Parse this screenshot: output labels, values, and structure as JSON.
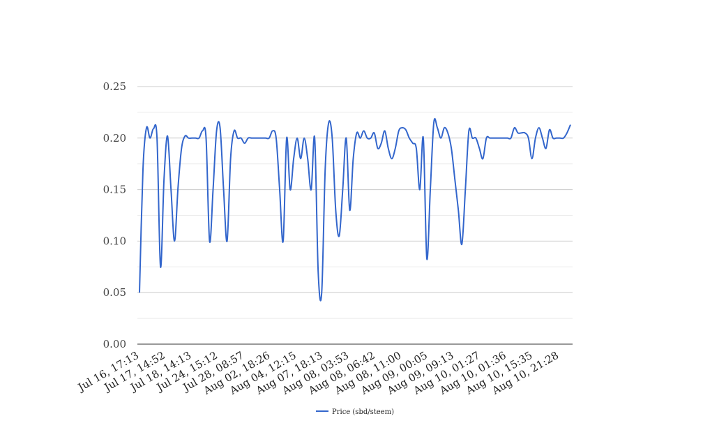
{
  "chart_data": {
    "type": "line",
    "xlabel": "",
    "ylabel": "",
    "ylim": [
      0,
      0.25
    ],
    "yticks": [
      "0.00",
      "0.05",
      "0.10",
      "0.15",
      "0.20",
      "0.25"
    ],
    "grid": true,
    "legend_position": "bottom",
    "x_tick_labels": [
      "Jul 16, 17:13",
      "Jul 17, 14:52",
      "Jul 18, 14:13",
      "Jul 24, 15:12",
      "Jul 28, 08:57",
      "Aug 02, 18:26",
      "Aug 04, 12:15",
      "Aug 07, 18:13",
      "Aug 08, 03:53",
      "Aug 08, 06:42",
      "Aug 08, 11:00",
      "Aug 09, 00:05",
      "Aug 09, 09:13",
      "Aug 10, 01:27",
      "Aug 10, 01:36",
      "Aug 10, 15:35",
      "Aug 10, 21:28"
    ],
    "series": [
      {
        "name": "Price (sbd/steem)",
        "color": "#3366cc",
        "values": [
          0.05,
          0.17,
          0.21,
          0.2,
          0.209,
          0.2,
          0.075,
          0.16,
          0.202,
          0.15,
          0.1,
          0.152,
          0.19,
          0.202,
          0.2,
          0.2,
          0.2,
          0.2,
          0.207,
          0.2,
          0.1,
          0.15,
          0.207,
          0.21,
          0.15,
          0.1,
          0.18,
          0.207,
          0.2,
          0.2,
          0.195,
          0.2,
          0.2,
          0.2,
          0.2,
          0.2,
          0.2,
          0.2,
          0.207,
          0.2,
          0.15,
          0.1,
          0.2,
          0.15,
          0.18,
          0.2,
          0.18,
          0.2,
          0.18,
          0.15,
          0.2,
          0.07,
          0.05,
          0.17,
          0.215,
          0.2,
          0.13,
          0.105,
          0.15,
          0.2,
          0.13,
          0.18,
          0.205,
          0.2,
          0.207,
          0.2,
          0.2,
          0.205,
          0.19,
          0.195,
          0.207,
          0.19,
          0.18,
          0.19,
          0.207,
          0.21,
          0.208,
          0.2,
          0.195,
          0.19,
          0.15,
          0.2,
          0.083,
          0.15,
          0.215,
          0.21,
          0.2,
          0.21,
          0.205,
          0.19,
          0.16,
          0.13,
          0.097,
          0.15,
          0.207,
          0.2,
          0.2,
          0.19,
          0.18,
          0.2,
          0.2,
          0.2,
          0.2,
          0.2,
          0.2,
          0.2,
          0.2,
          0.21,
          0.205,
          0.205,
          0.205,
          0.2,
          0.18,
          0.2,
          0.21,
          0.2,
          0.19,
          0.208,
          0.2,
          0.2,
          0.2,
          0.2,
          0.205,
          0.213
        ]
      }
    ]
  }
}
